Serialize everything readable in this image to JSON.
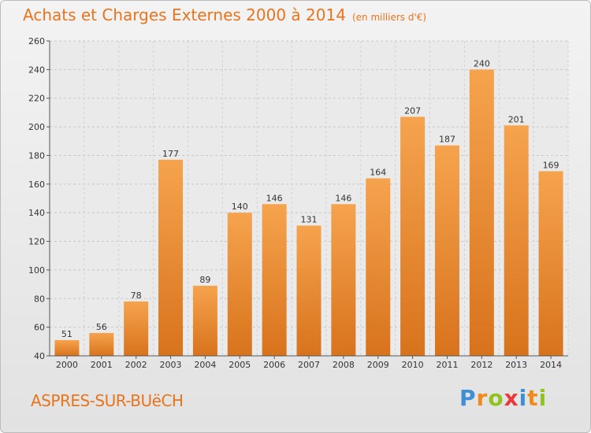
{
  "header": {
    "title": "Achats et Charges Externes 2000 à 2014",
    "subtitle": "(en milliers d'€)"
  },
  "footer": {
    "city": "ASPRES-SUR-BUëCH"
  },
  "logo": {
    "letters": [
      "P",
      "r",
      "o",
      "x",
      "i",
      "t",
      "i"
    ],
    "colors": [
      "#3e8fd6",
      "#f08a1c",
      "#8fc31f",
      "#e83a3a",
      "#3e8fd6",
      "#f08a1c",
      "#8fc31f"
    ]
  },
  "colors": {
    "accent": "#e8741c",
    "bar_light": "#f6a34e",
    "bar_dark": "#d8731c"
  },
  "chart_data": {
    "type": "bar",
    "categories": [
      "2000",
      "2001",
      "2002",
      "2003",
      "2004",
      "2005",
      "2006",
      "2007",
      "2008",
      "2009",
      "2010",
      "2011",
      "2012",
      "2013",
      "2014"
    ],
    "values": [
      51,
      56,
      78,
      177,
      89,
      140,
      146,
      131,
      146,
      164,
      207,
      187,
      240,
      201,
      169
    ],
    "ylim": [
      40,
      260
    ],
    "yticks": [
      40,
      60,
      80,
      100,
      120,
      140,
      160,
      180,
      200,
      220,
      240,
      260
    ],
    "grid": true,
    "data_labels": true
  }
}
